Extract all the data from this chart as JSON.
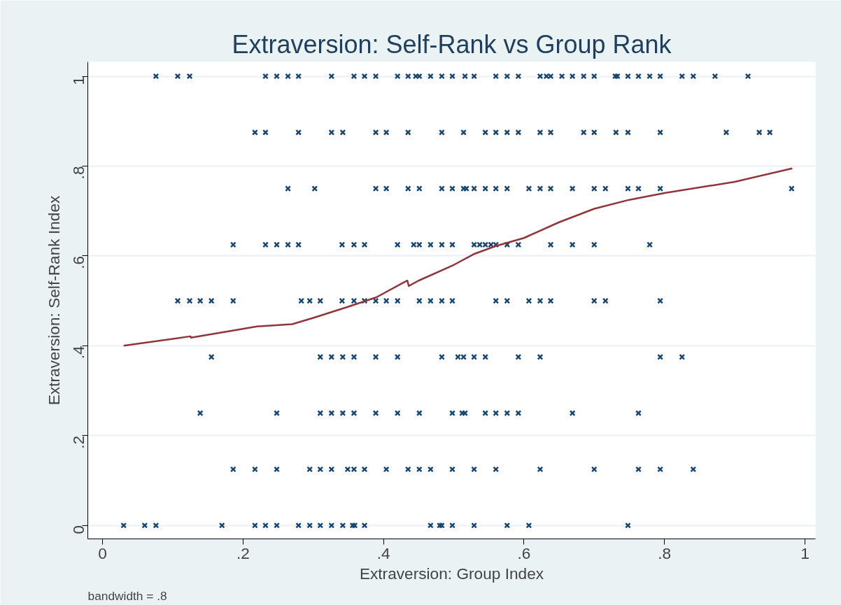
{
  "chart_data": {
    "type": "scatter",
    "title": "Extraversion: Self-Rank vs Group Rank",
    "xlabel": "Extraversion: Group Index",
    "ylabel": "Extraversion: Self-Rank Index",
    "annotations": [
      "bandwidth = .8"
    ],
    "xlim": [
      -0.021,
      1.015
    ],
    "ylim": [
      -0.03,
      1.032
    ],
    "xticks": [
      0,
      {
        "value": 0.2,
        "label": ".2"
      },
      {
        "value": 0.4,
        "label": ".4"
      },
      {
        "value": 0.6,
        "label": ".6"
      },
      {
        "value": 0.8,
        "label": ".8"
      },
      1
    ],
    "yticks": [
      0,
      {
        "value": 0.2,
        "label": ".2"
      },
      {
        "value": 0.4,
        "label": ".4"
      },
      {
        "value": 0.6,
        "label": ".6"
      },
      {
        "value": 0.8,
        "label": ".8"
      },
      1
    ],
    "grid": "y",
    "marker": "cross",
    "series": [
      {
        "color": "#1a476f",
        "x": [
          0.076,
          0.107,
          0.124,
          0.232,
          0.248,
          0.264,
          0.279,
          0.326,
          0.358,
          0.373,
          0.389,
          0.42,
          0.435,
          0.446,
          0.451,
          0.467,
          0.483,
          0.498,
          0.516,
          0.529,
          0.56,
          0.576,
          0.592,
          0.623,
          0.632,
          0.638,
          0.654,
          0.669,
          0.685,
          0.7,
          0.73,
          0.733,
          0.748,
          0.763,
          0.779,
          0.794,
          0.825,
          0.841,
          0.872,
          0.919,
          0.217,
          0.232,
          0.279,
          0.326,
          0.342,
          0.389,
          0.404,
          0.435,
          0.483,
          0.514,
          0.545,
          0.56,
          0.576,
          0.592,
          0.623,
          0.638,
          0.685,
          0.7,
          0.731,
          0.748,
          0.794,
          0.888,
          0.935,
          0.95,
          0.264,
          0.302,
          0.389,
          0.404,
          0.435,
          0.451,
          0.483,
          0.498,
          0.514,
          0.518,
          0.529,
          0.545,
          0.56,
          0.576,
          0.607,
          0.623,
          0.638,
          0.669,
          0.7,
          0.716,
          0.748,
          0.763,
          0.794,
          0.981,
          0.186,
          0.232,
          0.248,
          0.264,
          0.279,
          0.341,
          0.358,
          0.373,
          0.42,
          0.443,
          0.451,
          0.467,
          0.483,
          0.498,
          0.529,
          0.537,
          0.545,
          0.553,
          0.56,
          0.576,
          0.592,
          0.638,
          0.669,
          0.7,
          0.779,
          0.107,
          0.124,
          0.139,
          0.155,
          0.186,
          0.283,
          0.295,
          0.31,
          0.341,
          0.358,
          0.373,
          0.389,
          0.404,
          0.42,
          0.451,
          0.467,
          0.483,
          0.498,
          0.56,
          0.576,
          0.607,
          0.623,
          0.638,
          0.7,
          0.716,
          0.794,
          0.155,
          0.31,
          0.326,
          0.342,
          0.358,
          0.389,
          0.42,
          0.483,
          0.506,
          0.514,
          0.529,
          0.545,
          0.592,
          0.623,
          0.794,
          0.825,
          0.139,
          0.248,
          0.31,
          0.326,
          0.342,
          0.358,
          0.389,
          0.42,
          0.451,
          0.498,
          0.512,
          0.516,
          0.545,
          0.56,
          0.576,
          0.592,
          0.669,
          0.763,
          0.186,
          0.217,
          0.248,
          0.295,
          0.31,
          0.326,
          0.349,
          0.358,
          0.373,
          0.404,
          0.435,
          0.451,
          0.467,
          0.498,
          0.529,
          0.56,
          0.623,
          0.7,
          0.763,
          0.794,
          0.841,
          0.03,
          0.06,
          0.076,
          0.17,
          0.217,
          0.232,
          0.248,
          0.279,
          0.295,
          0.31,
          0.326,
          0.342,
          0.356,
          0.359,
          0.373,
          0.467,
          0.48,
          0.483,
          0.498,
          0.529,
          0.576,
          0.607,
          0.748
        ],
        "values": [
          1,
          1,
          1,
          1,
          1,
          1,
          1,
          1,
          1,
          1,
          1,
          1,
          1,
          1,
          1,
          1,
          1,
          1,
          1,
          1,
          1,
          1,
          1,
          1,
          1,
          1,
          1,
          1,
          1,
          1,
          1,
          1,
          1,
          1,
          1,
          1,
          1,
          1,
          1,
          1,
          0.875,
          0.875,
          0.875,
          0.875,
          0.875,
          0.875,
          0.875,
          0.875,
          0.875,
          0.875,
          0.875,
          0.875,
          0.875,
          0.875,
          0.875,
          0.875,
          0.875,
          0.875,
          0.875,
          0.875,
          0.875,
          0.875,
          0.875,
          0.875,
          0.75,
          0.75,
          0.75,
          0.75,
          0.75,
          0.75,
          0.75,
          0.75,
          0.75,
          0.75,
          0.75,
          0.75,
          0.75,
          0.75,
          0.75,
          0.75,
          0.75,
          0.75,
          0.75,
          0.75,
          0.75,
          0.75,
          0.75,
          0.75,
          0.625,
          0.625,
          0.625,
          0.625,
          0.625,
          0.625,
          0.625,
          0.625,
          0.625,
          0.625,
          0.625,
          0.625,
          0.625,
          0.625,
          0.625,
          0.625,
          0.625,
          0.625,
          0.625,
          0.625,
          0.625,
          0.625,
          0.625,
          0.625,
          0.625,
          0.5,
          0.5,
          0.5,
          0.5,
          0.5,
          0.5,
          0.5,
          0.5,
          0.5,
          0.5,
          0.5,
          0.5,
          0.5,
          0.5,
          0.5,
          0.5,
          0.5,
          0.5,
          0.5,
          0.5,
          0.5,
          0.5,
          0.5,
          0.5,
          0.5,
          0.5,
          0.375,
          0.375,
          0.375,
          0.375,
          0.375,
          0.375,
          0.375,
          0.375,
          0.375,
          0.375,
          0.375,
          0.375,
          0.375,
          0.375,
          0.375,
          0.375,
          0.25,
          0.25,
          0.25,
          0.25,
          0.25,
          0.25,
          0.25,
          0.25,
          0.25,
          0.25,
          0.25,
          0.25,
          0.25,
          0.25,
          0.25,
          0.25,
          0.25,
          0.25,
          0.125,
          0.125,
          0.125,
          0.125,
          0.125,
          0.125,
          0.125,
          0.125,
          0.125,
          0.125,
          0.125,
          0.125,
          0.125,
          0.125,
          0.125,
          0.125,
          0.125,
          0.125,
          0.125,
          0.125,
          0.125,
          0,
          0,
          0,
          0,
          0,
          0,
          0,
          0,
          0,
          0,
          0,
          0,
          0,
          0,
          0,
          0,
          0,
          0,
          0,
          0,
          0,
          0,
          0
        ]
      },
      {
        "type": "line",
        "color": "#90353b",
        "marker": "none",
        "x": [
          0.03,
          0.125,
          0.126,
          0.22,
          0.27,
          0.3,
          0.35,
          0.39,
          0.43,
          0.434,
          0.436,
          0.45,
          0.5,
          0.53,
          0.56,
          0.6,
          0.65,
          0.7,
          0.75,
          0.8,
          0.9,
          0.982
        ],
        "values": [
          0.4,
          0.421,
          0.418,
          0.443,
          0.448,
          0.462,
          0.487,
          0.508,
          0.542,
          0.545,
          0.533,
          0.545,
          0.58,
          0.605,
          0.622,
          0.64,
          0.675,
          0.705,
          0.725,
          0.74,
          0.765,
          0.795
        ]
      }
    ]
  }
}
